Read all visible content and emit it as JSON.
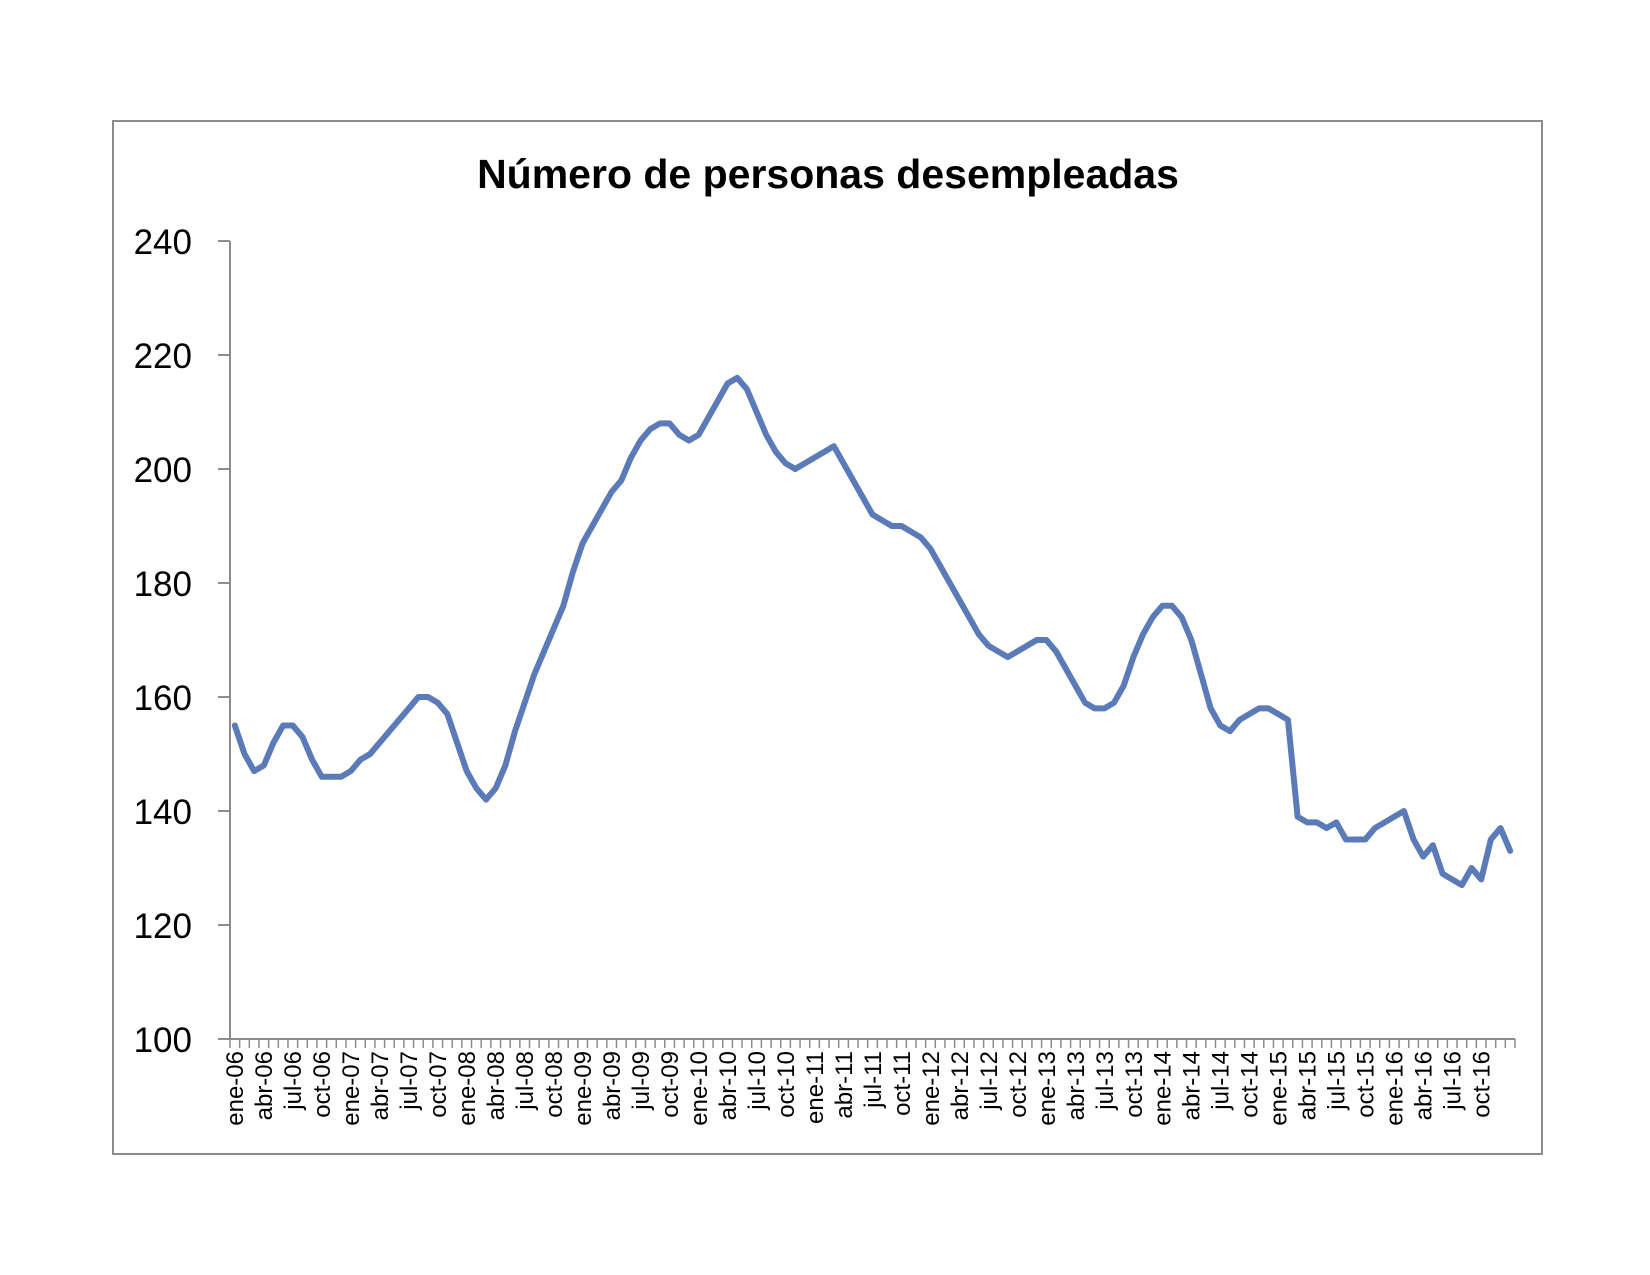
{
  "chart_data": {
    "type": "line",
    "title": "Número de personas desempleadas",
    "xlabel": "",
    "ylabel": "",
    "ylim": [
      100,
      240
    ],
    "yticks": [
      100,
      120,
      140,
      160,
      180,
      200,
      220,
      240
    ],
    "xtick_labels": [
      "ene-06",
      "abr-06",
      "jul-06",
      "oct-06",
      "ene-07",
      "abr-07",
      "jul-07",
      "oct-07",
      "ene-08",
      "abr-08",
      "jul-08",
      "oct-08",
      "ene-09",
      "abr-09",
      "jul-09",
      "oct-09",
      "ene-10",
      "abr-10",
      "jul-10",
      "oct-10",
      "ene-11",
      "abr-11",
      "jul-11",
      "oct-11",
      "ene-12",
      "abr-12",
      "jul-12",
      "oct-12",
      "ene-13",
      "abr-13",
      "jul-13",
      "oct-13",
      "ene-14",
      "abr-14",
      "jul-14",
      "oct-14",
      "ene-15",
      "abr-15",
      "jul-15",
      "oct-15",
      "ene-16",
      "abr-16",
      "jul-16",
      "oct-16"
    ],
    "grid": false,
    "legend": "none",
    "line_color": "#5b7ab8",
    "series": [
      {
        "values": [
          155,
          150,
          147,
          148,
          152,
          155,
          155,
          153,
          149,
          146,
          146,
          146,
          147,
          149,
          150,
          152,
          154,
          156,
          158,
          160,
          160,
          159,
          157,
          152,
          147,
          144,
          142,
          144,
          148,
          154,
          159,
          164,
          168,
          172,
          176,
          182,
          187,
          190,
          193,
          196,
          198,
          202,
          205,
          207,
          208,
          208,
          206,
          205,
          206,
          209,
          212,
          215,
          216,
          214,
          210,
          206,
          203,
          201,
          200,
          201,
          202,
          203,
          204,
          201,
          198,
          195,
          192,
          191,
          190,
          190,
          189,
          188,
          186,
          183,
          180,
          177,
          174,
          171,
          169,
          168,
          167,
          168,
          169,
          170,
          170,
          168,
          165,
          162,
          159,
          158,
          158,
          159,
          162,
          167,
          171,
          174,
          176,
          176,
          174,
          170,
          164,
          158,
          155,
          154,
          156,
          157,
          158,
          158,
          157,
          156,
          139,
          138,
          138,
          137,
          138,
          135,
          135,
          135,
          137,
          138,
          139,
          140,
          135,
          132,
          134,
          129,
          128,
          127,
          130,
          128,
          135,
          137,
          133
        ]
      }
    ]
  }
}
